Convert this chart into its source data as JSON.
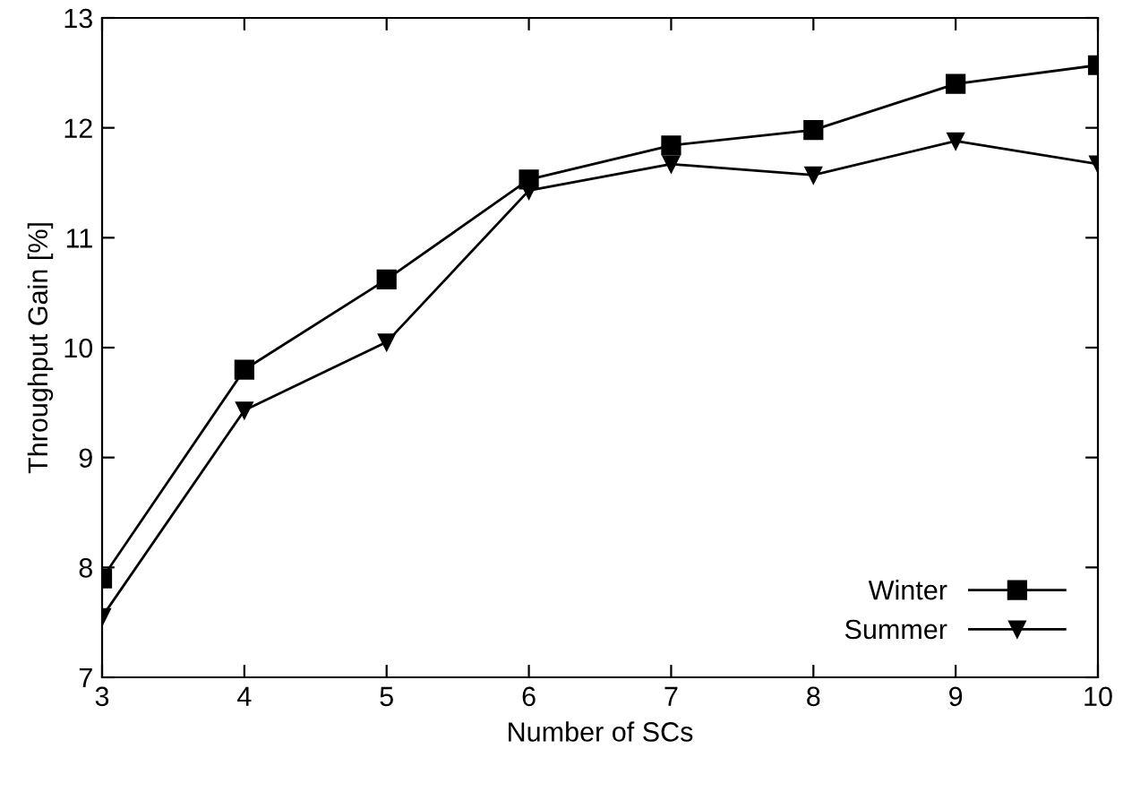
{
  "chart_data": {
    "type": "line",
    "xlabel": "Number of SCs",
    "ylabel": "Throughput Gain [%]",
    "x": [
      3,
      4,
      5,
      6,
      7,
      8,
      9,
      10
    ],
    "series": [
      {
        "name": "Winter",
        "color": "#000000",
        "marker": "square",
        "values": [
          7.9,
          9.8,
          10.62,
          11.53,
          11.84,
          11.98,
          12.4,
          12.57
        ]
      },
      {
        "name": "Summer",
        "color": "#000000",
        "marker": "triangle_down",
        "values": [
          7.55,
          9.43,
          10.05,
          11.43,
          11.67,
          11.57,
          11.88,
          11.67
        ]
      }
    ],
    "xlim": [
      3,
      10
    ],
    "xticks": [
      3,
      4,
      5,
      6,
      7,
      8,
      9,
      10
    ],
    "ylim": [
      7,
      13
    ],
    "yticks": [
      7,
      8,
      9,
      10,
      11,
      12,
      13
    ],
    "grid": false,
    "legend": "lower right",
    "line_style": "solid"
  }
}
